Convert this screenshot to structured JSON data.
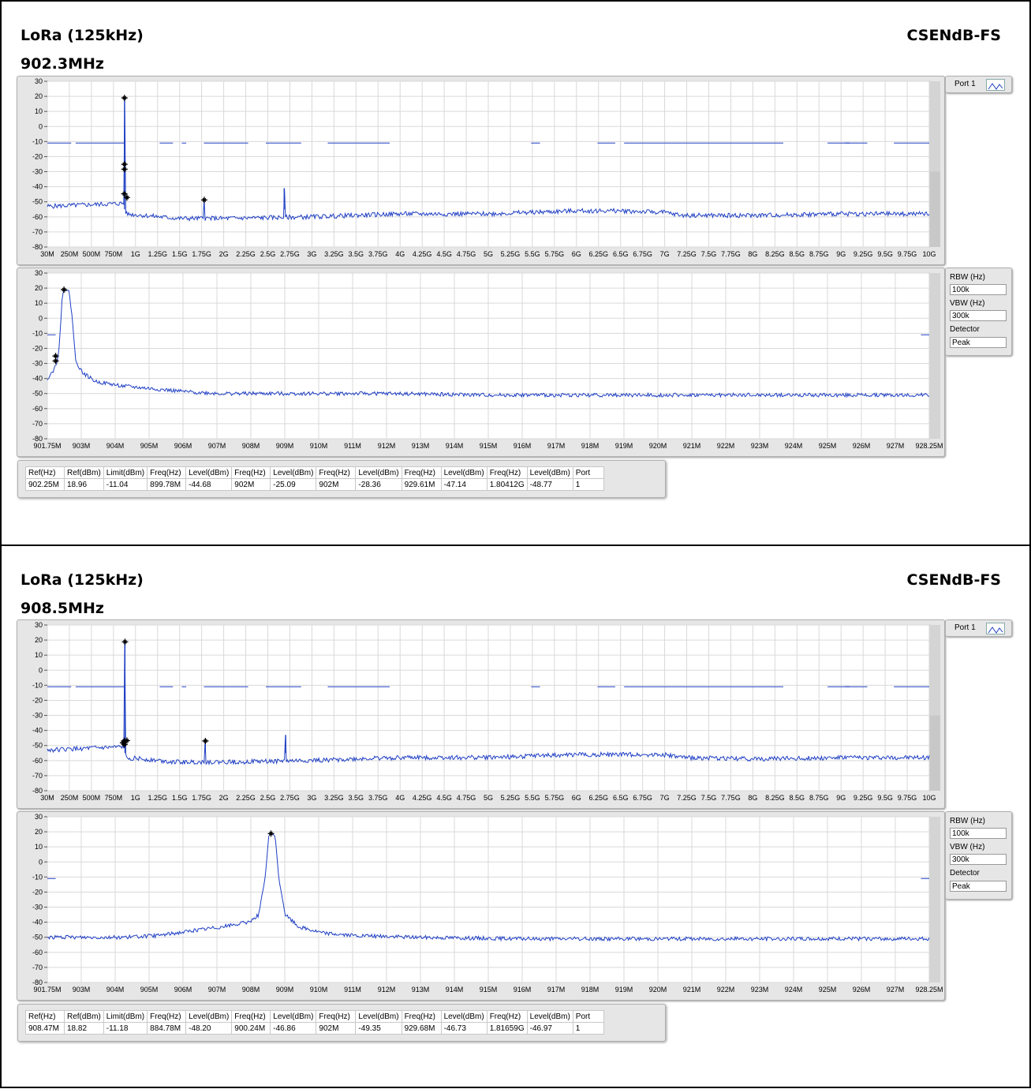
{
  "colors": {
    "trace": "#1f3fc4",
    "limit": "#1f3fc4",
    "marker": "#000000",
    "grid": "#d9d9d9",
    "plot_bg": "#ffffff",
    "frame_bg": "#e6e6e6",
    "noise_floor_fill": "#c8c8c8"
  },
  "panels": [
    {
      "title": "LoRa (125kHz)",
      "subtitle": "902.3MHz",
      "right_title": "CSENdB-FS",
      "port": {
        "label": "Port 1",
        "icon": "trace-icon"
      },
      "settings": {
        "rbw_label": "RBW (Hz)",
        "rbw": "100k",
        "vbw_label": "VBW (Hz)",
        "vbw": "300k",
        "detector_label": "Detector",
        "detector": "Peak"
      },
      "markers_table": {
        "headers": [
          "Ref(Hz)",
          "Ref(dBm)",
          "Limit(dBm)",
          "Freq(Hz)",
          "Level(dBm)",
          "Freq(Hz)",
          "Level(dBm)",
          "Freq(Hz)",
          "Level(dBm)",
          "Freq(Hz)",
          "Level(dBm)",
          "Freq(Hz)",
          "Level(dBm)",
          "Port"
        ],
        "row": [
          "902.25M",
          "18.96",
          "-11.04",
          "899.78M",
          "-44.68",
          "902M",
          "-25.09",
          "902M",
          "-28.36",
          "929.61M",
          "-47.14",
          "1.80412G",
          "-48.77",
          "1"
        ]
      }
    },
    {
      "title": "LoRa (125kHz)",
      "subtitle": "908.5MHz",
      "right_title": "CSENdB-FS",
      "port": {
        "label": "Port 1",
        "icon": "trace-icon"
      },
      "settings": {
        "rbw_label": "RBW (Hz)",
        "rbw": "100k",
        "vbw_label": "VBW (Hz)",
        "vbw": "300k",
        "detector_label": "Detector",
        "detector": "Peak"
      },
      "markers_table": {
        "headers": [
          "Ref(Hz)",
          "Ref(dBm)",
          "Limit(dBm)",
          "Freq(Hz)",
          "Level(dBm)",
          "Freq(Hz)",
          "Level(dBm)",
          "Freq(Hz)",
          "Level(dBm)",
          "Freq(Hz)",
          "Level(dBm)",
          "Freq(Hz)",
          "Level(dBm)",
          "Port"
        ],
        "row": [
          "908.47M",
          "18.82",
          "-11.18",
          "884.78M",
          "-48.20",
          "900.24M",
          "-46.86",
          "902M",
          "-49.35",
          "929.68M",
          "-46.73",
          "1.81659G",
          "-46.97",
          "1"
        ]
      }
    }
  ],
  "chart_data": [
    {
      "type": "line",
      "panel": 0,
      "role": "wideband",
      "xlim": [
        0.03,
        10
      ],
      "ylim": [
        -80,
        30
      ],
      "xticks": [
        "30M",
        "250M",
        "500M",
        "750M",
        "1G",
        "1.25G",
        "1.5G",
        "1.75G",
        "2G",
        "2.25G",
        "2.5G",
        "2.75G",
        "3G",
        "3.25G",
        "3.5G",
        "3.75G",
        "4G",
        "4.25G",
        "4.5G",
        "4.75G",
        "5G",
        "5.25G",
        "5.5G",
        "5.75G",
        "6G",
        "6.25G",
        "6.5G",
        "6.75G",
        "7G",
        "7.25G",
        "7.5G",
        "7.75G",
        "8G",
        "8.25G",
        "8.5G",
        "8.75G",
        "9G",
        "9.25G",
        "9.5G",
        "9.75G",
        "10G"
      ],
      "yticks": [
        "30",
        "20",
        "10",
        "0",
        "-10",
        "-20",
        "-30",
        "-40",
        "-50",
        "-60",
        "-70",
        "-80"
      ],
      "floor": [
        [
          0.03,
          -53
        ],
        [
          0.9,
          -51
        ],
        [
          0.92,
          -58
        ],
        [
          1.5,
          -61
        ],
        [
          2.0,
          -61
        ],
        [
          3.0,
          -60
        ],
        [
          4.0,
          -58
        ],
        [
          5.0,
          -58
        ],
        [
          6.0,
          -56
        ],
        [
          6.5,
          -56
        ],
        [
          7.0,
          -57
        ],
        [
          7.2,
          -59
        ],
        [
          8.0,
          -59
        ],
        [
          9.0,
          -58
        ],
        [
          10.0,
          -58
        ]
      ],
      "spikes": [
        [
          0.902,
          18.96
        ],
        [
          1.804,
          -48.77
        ],
        [
          2.707,
          -41
        ]
      ],
      "limit_segments": [
        [
          0.03,
          -11,
          0.3
        ],
        [
          0.35,
          -11,
          0.9
        ],
        [
          1.3,
          -11,
          1.45
        ],
        [
          1.55,
          -11,
          1.6
        ],
        [
          1.8,
          -11,
          2.3
        ],
        [
          2.5,
          -11,
          2.9
        ],
        [
          3.2,
          -11,
          3.9
        ],
        [
          5.5,
          -11,
          5.6
        ],
        [
          6.25,
          -11,
          6.45
        ],
        [
          6.55,
          -11,
          8.35
        ],
        [
          8.85,
          -11,
          9.1
        ],
        [
          9.6,
          -11,
          10.0
        ],
        [
          9.05,
          -11,
          9.3
        ]
      ],
      "markers": [
        [
          0.902,
          18.96
        ],
        [
          0.902,
          -25.09
        ],
        [
          0.902,
          -28.36
        ],
        [
          0.9,
          -44.68
        ],
        [
          0.93,
          -47.14
        ],
        [
          1.804,
          -48.77
        ]
      ]
    },
    {
      "type": "line",
      "panel": 0,
      "role": "zoom",
      "xlim": [
        901.75,
        928.25
      ],
      "ylim": [
        -80,
        30
      ],
      "xticks": [
        "901.75M",
        "903M",
        "904M",
        "905M",
        "906M",
        "907M",
        "908M",
        "909M",
        "910M",
        "911M",
        "912M",
        "913M",
        "914M",
        "915M",
        "916M",
        "917M",
        "918M",
        "919M",
        "920M",
        "921M",
        "922M",
        "923M",
        "924M",
        "925M",
        "926M",
        "927M",
        "928.25M"
      ],
      "yticks": [
        "30",
        "20",
        "10",
        "0",
        "-10",
        "-20",
        "-30",
        "-40",
        "-50",
        "-60",
        "-70",
        "-80"
      ],
      "trace": [
        [
          901.75,
          -40
        ],
        [
          901.95,
          -34
        ],
        [
          902.05,
          -28
        ],
        [
          902.1,
          -20
        ],
        [
          902.15,
          -5
        ],
        [
          902.2,
          15
        ],
        [
          902.25,
          19
        ],
        [
          902.4,
          18
        ],
        [
          902.5,
          0
        ],
        [
          902.6,
          -28
        ],
        [
          902.8,
          -36
        ],
        [
          903.2,
          -42
        ],
        [
          904,
          -45
        ],
        [
          905,
          -47
        ],
        [
          906,
          -49
        ],
        [
          907,
          -50
        ],
        [
          909,
          -50
        ],
        [
          912,
          -50
        ],
        [
          915,
          -51
        ],
        [
          918,
          -51
        ],
        [
          921,
          -51
        ],
        [
          924,
          -51
        ],
        [
          928.25,
          -51
        ]
      ],
      "limit_segments": [
        [
          901.75,
          -11,
          902.0
        ],
        [
          928.0,
          -11,
          928.25
        ]
      ],
      "markers": [
        [
          902.25,
          18.96
        ],
        [
          902.0,
          -25.09
        ],
        [
          902.0,
          -28.36
        ]
      ]
    },
    {
      "type": "line",
      "panel": 1,
      "role": "wideband",
      "xlim": [
        0.03,
        10
      ],
      "ylim": [
        -80,
        30
      ],
      "xticks": [
        "30M",
        "250M",
        "500M",
        "750M",
        "1G",
        "1.25G",
        "1.5G",
        "1.75G",
        "2G",
        "2.25G",
        "2.5G",
        "2.75G",
        "3G",
        "3.25G",
        "3.5G",
        "3.75G",
        "4G",
        "4.25G",
        "4.5G",
        "4.75G",
        "5G",
        "5.25G",
        "5.5G",
        "5.75G",
        "6G",
        "6.25G",
        "6.5G",
        "6.75G",
        "7G",
        "7.25G",
        "7.5G",
        "7.75G",
        "8G",
        "8.25G",
        "8.5G",
        "8.75G",
        "9G",
        "9.25G",
        "9.5G",
        "9.75G",
        "10G"
      ],
      "yticks": [
        "30",
        "20",
        "10",
        "0",
        "-10",
        "-20",
        "-30",
        "-40",
        "-50",
        "-60",
        "-70",
        "-80"
      ],
      "floor": [
        [
          0.03,
          -53
        ],
        [
          0.9,
          -51
        ],
        [
          0.92,
          -58
        ],
        [
          1.5,
          -61
        ],
        [
          2.0,
          -61
        ],
        [
          3.0,
          -60
        ],
        [
          4.0,
          -58
        ],
        [
          5.0,
          -58
        ],
        [
          6.0,
          -56
        ],
        [
          7.0,
          -56
        ],
        [
          7.2,
          -58
        ],
        [
          8.0,
          -59
        ],
        [
          9.0,
          -58
        ],
        [
          10.0,
          -58
        ]
      ],
      "spikes": [
        [
          0.908,
          18.82
        ],
        [
          1.817,
          -46.97
        ],
        [
          2.725,
          -43
        ]
      ],
      "limit_segments": [
        [
          0.03,
          -11,
          0.3
        ],
        [
          0.35,
          -11,
          0.9
        ],
        [
          1.3,
          -11,
          1.45
        ],
        [
          1.55,
          -11,
          1.6
        ],
        [
          1.8,
          -11,
          2.3
        ],
        [
          2.5,
          -11,
          2.9
        ],
        [
          3.2,
          -11,
          3.9
        ],
        [
          5.5,
          -11,
          5.6
        ],
        [
          6.25,
          -11,
          6.45
        ],
        [
          6.55,
          -11,
          8.35
        ],
        [
          8.85,
          -11,
          9.1
        ],
        [
          9.6,
          -11,
          10.0
        ],
        [
          9.05,
          -11,
          9.3
        ]
      ],
      "markers": [
        [
          0.908,
          18.82
        ],
        [
          0.885,
          -48.2
        ],
        [
          0.9,
          -46.86
        ],
        [
          0.902,
          -49.35
        ],
        [
          0.93,
          -46.73
        ],
        [
          1.817,
          -46.97
        ]
      ]
    },
    {
      "type": "line",
      "panel": 1,
      "role": "zoom",
      "xlim": [
        901.75,
        928.25
      ],
      "ylim": [
        -80,
        30
      ],
      "xticks": [
        "901.75M",
        "903M",
        "904M",
        "905M",
        "906M",
        "907M",
        "908M",
        "909M",
        "910M",
        "911M",
        "912M",
        "913M",
        "914M",
        "915M",
        "916M",
        "917M",
        "918M",
        "919M",
        "920M",
        "921M",
        "922M",
        "923M",
        "924M",
        "925M",
        "926M",
        "927M",
        "928.25M"
      ],
      "yticks": [
        "30",
        "20",
        "10",
        "0",
        "-10",
        "-20",
        "-30",
        "-40",
        "-50",
        "-60",
        "-70",
        "-80"
      ],
      "trace": [
        [
          901.75,
          -50
        ],
        [
          903,
          -50
        ],
        [
          904,
          -50
        ],
        [
          905,
          -49
        ],
        [
          906,
          -46
        ],
        [
          907,
          -43
        ],
        [
          907.8,
          -40
        ],
        [
          908.1,
          -35
        ],
        [
          908.3,
          -10
        ],
        [
          908.4,
          17
        ],
        [
          908.47,
          19
        ],
        [
          908.6,
          17
        ],
        [
          908.7,
          -10
        ],
        [
          908.9,
          -35
        ],
        [
          909.3,
          -43
        ],
        [
          910,
          -47
        ],
        [
          911,
          -49
        ],
        [
          913,
          -50
        ],
        [
          916,
          -51
        ],
        [
          919,
          -51
        ],
        [
          922,
          -51
        ],
        [
          925,
          -51
        ],
        [
          928.25,
          -51
        ]
      ],
      "limit_segments": [
        [
          901.75,
          -11,
          902.0
        ],
        [
          928.0,
          -11,
          928.25
        ]
      ],
      "markers": [
        [
          908.47,
          18.82
        ]
      ]
    }
  ]
}
